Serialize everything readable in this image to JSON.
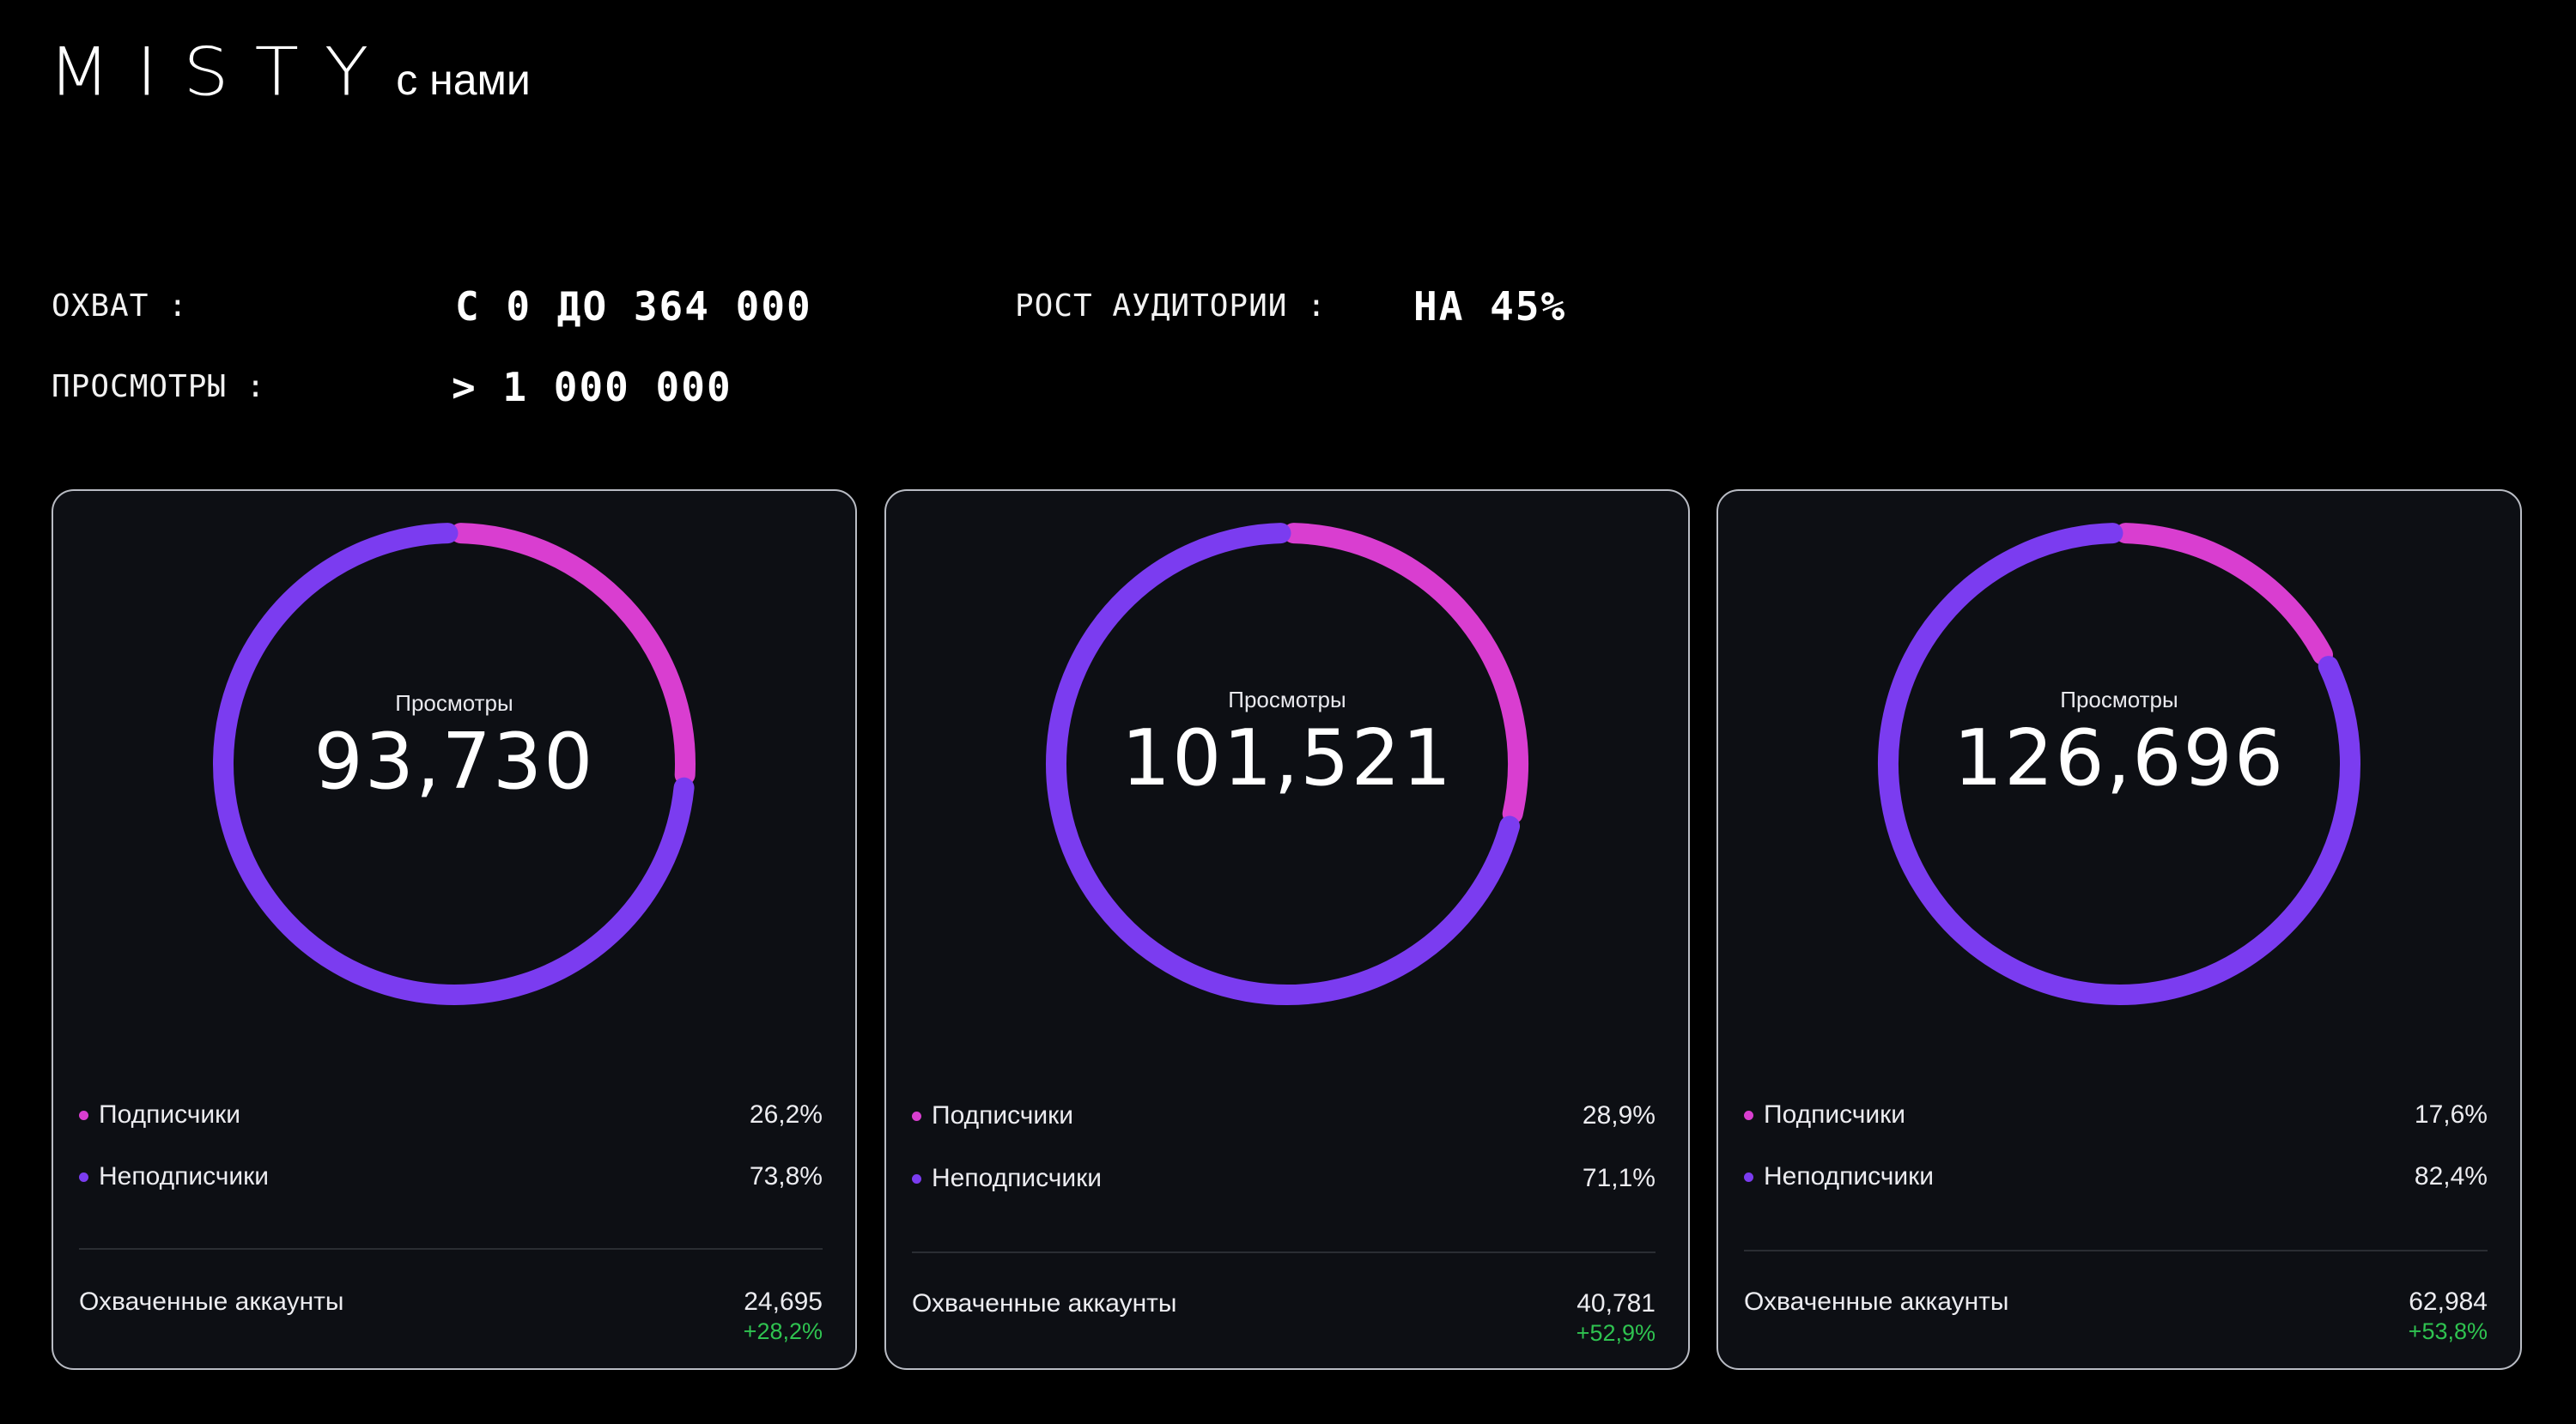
{
  "brand": {
    "logo": "MISTY",
    "tagline": "с нами"
  },
  "stats": {
    "reach_label": "ОХВАТ :",
    "reach_value": "С 0 ДО 364 000",
    "growth_label": "РОСТ АУДИТОРИИ :",
    "growth_value": "НА 45%",
    "views_label": "ПРОСМОТРЫ :",
    "views_value": "> 1 000 000"
  },
  "colors": {
    "followers": "#d93ed0",
    "non_followers": "#7b3cf0",
    "growth": "#2fc350"
  },
  "chart_data": [
    {
      "type": "pie",
      "center_label": "Просмотры",
      "center_value": "93,730",
      "series": [
        {
          "name": "Подписчики",
          "value": 26.2,
          "label": "26,2%"
        },
        {
          "name": "Неподписчики",
          "value": 73.8,
          "label": "73,8%"
        }
      ],
      "reach_label": "Охваченные аккаунты",
      "reach_value": "24,695",
      "reach_growth": "+28,2%"
    },
    {
      "type": "pie",
      "center_label": "Просмотры",
      "center_value": "101,521",
      "series": [
        {
          "name": "Подписчики",
          "value": 28.9,
          "label": "28,9%"
        },
        {
          "name": "Неподписчики",
          "value": 71.1,
          "label": "71,1%"
        }
      ],
      "reach_label": "Охваченные аккаунты",
      "reach_value": "40,781",
      "reach_growth": "+52,9%"
    },
    {
      "type": "pie",
      "center_label": "Просмотры",
      "center_value": "126,696",
      "series": [
        {
          "name": "Подписчики",
          "value": 17.6,
          "label": "17,6%"
        },
        {
          "name": "Неподписчики",
          "value": 82.4,
          "label": "82,4%"
        }
      ],
      "reach_label": "Охваченные аккаунты",
      "reach_value": "62,984",
      "reach_growth": "+53,8%"
    }
  ]
}
